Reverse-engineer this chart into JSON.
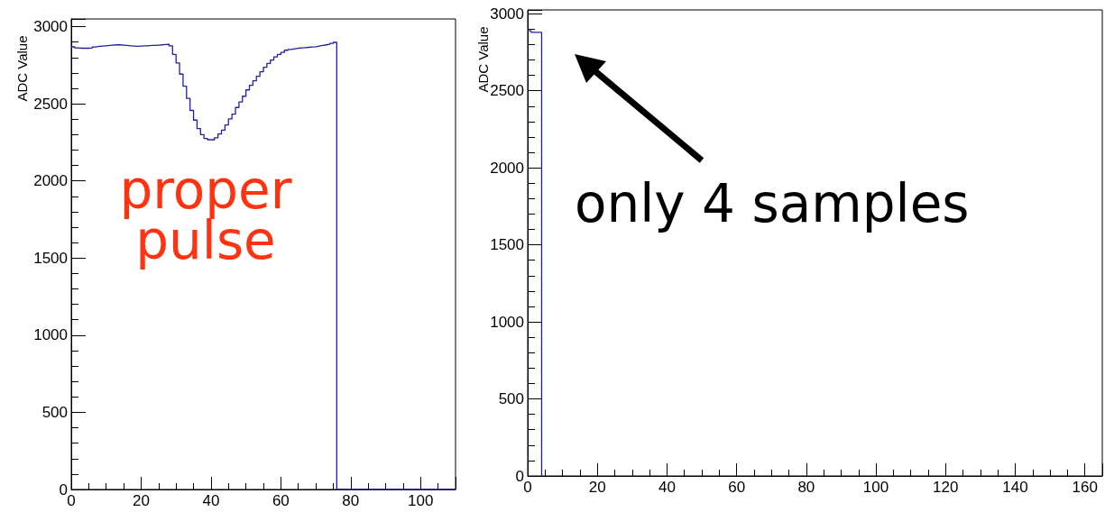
{
  "chart_data": [
    {
      "type": "step",
      "ylabel": "ADC Value",
      "color": "#2020a0",
      "x": [
        0,
        1,
        2,
        3,
        4,
        5,
        6,
        7,
        8,
        9,
        10,
        11,
        12,
        13,
        14,
        15,
        16,
        17,
        18,
        19,
        20,
        21,
        22,
        23,
        24,
        25,
        26,
        27,
        28,
        29,
        30,
        31,
        32,
        33,
        34,
        35,
        36,
        37,
        38,
        39,
        40,
        41,
        42,
        43,
        44,
        45,
        46,
        47,
        48,
        49,
        50,
        51,
        52,
        53,
        54,
        55,
        56,
        57,
        58,
        59,
        60,
        61,
        62,
        63,
        64,
        65,
        66,
        67,
        68,
        69,
        70,
        71,
        72,
        73,
        74,
        75,
        76,
        77,
        78,
        79,
        80,
        81,
        82,
        83,
        84,
        85,
        86,
        87,
        88,
        89,
        90,
        91,
        92,
        93,
        94,
        95,
        96,
        97,
        98,
        99,
        100,
        101,
        102,
        103,
        104,
        105,
        106,
        107,
        108,
        109,
        110
      ],
      "values": [
        2869,
        2862,
        2860,
        2860,
        2860,
        2862,
        2868,
        2872,
        2874,
        2876,
        2878,
        2880,
        2882,
        2882,
        2880,
        2878,
        2876,
        2874,
        2872,
        2874,
        2875,
        2876,
        2878,
        2878,
        2880,
        2882,
        2884,
        2886,
        2875,
        2820,
        2765,
        2692,
        2614,
        2535,
        2457,
        2394,
        2339,
        2300,
        2275,
        2267,
        2267,
        2280,
        2304,
        2329,
        2363,
        2402,
        2433,
        2476,
        2512,
        2549,
        2590,
        2620,
        2649,
        2678,
        2708,
        2737,
        2761,
        2784,
        2804,
        2820,
        2833,
        2847,
        2852,
        2856,
        2860,
        2862,
        2864,
        2866,
        2868,
        2870,
        2874,
        2878,
        2882,
        2886,
        2892,
        2898,
        0,
        0,
        0,
        0,
        0,
        0,
        0,
        0,
        0,
        0,
        0,
        0,
        0,
        0,
        0,
        0,
        0,
        0,
        0,
        0,
        0,
        0,
        0,
        0,
        0,
        0,
        0,
        0,
        0,
        0,
        0,
        0,
        0,
        0,
        0
      ],
      "xlim": [
        0,
        110
      ],
      "xticks": [
        0,
        20,
        40,
        60,
        80,
        100
      ],
      "ylim": [
        0,
        3050
      ],
      "yticks": [
        0,
        500,
        1000,
        1500,
        2000,
        2500,
        3000
      ],
      "annotations": [
        "proper\npulse"
      ]
    },
    {
      "type": "step",
      "ylabel": "ADC Value",
      "color": "#2020a0",
      "x": [
        0,
        1,
        2,
        3,
        4
      ],
      "values": [
        2890,
        2880,
        2880,
        2880,
        0
      ],
      "xlim": [
        0,
        165
      ],
      "xticks": [
        0,
        20,
        40,
        60,
        80,
        100,
        120,
        140,
        160
      ],
      "ylim": [
        0,
        3025
      ],
      "yticks": [
        0,
        500,
        1000,
        1500,
        2000,
        2500,
        3000
      ],
      "annotations": [
        "only 4 samples"
      ]
    }
  ]
}
